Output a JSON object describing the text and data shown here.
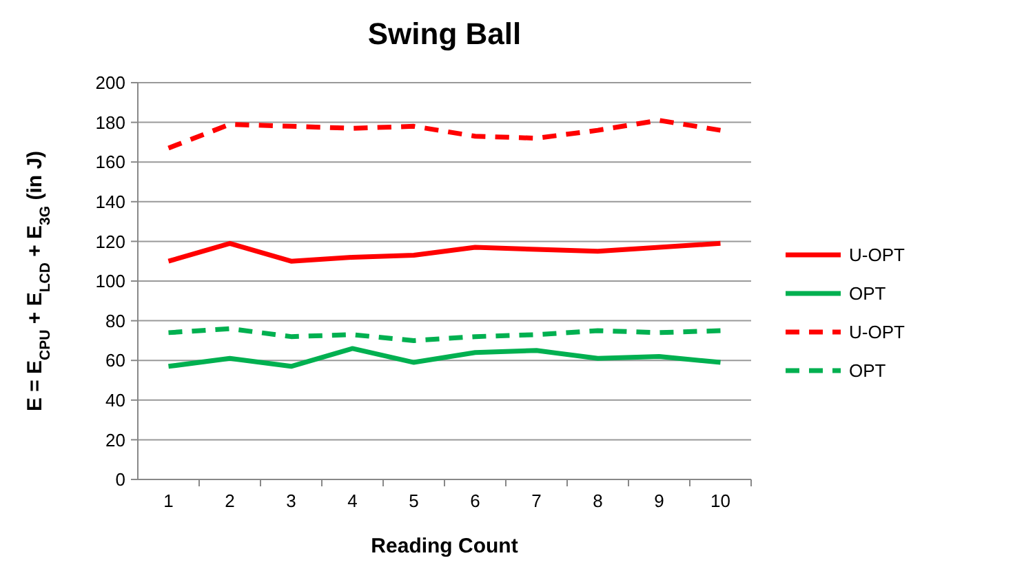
{
  "chart_data": {
    "type": "line",
    "title": "Swing Ball",
    "xlabel": "Reading Count",
    "ylabel": "E = E$_{CPU}$ + E$_{LCD}$ + E$_{3G}$ (in J)",
    "categories": [
      "1",
      "2",
      "3",
      "4",
      "5",
      "6",
      "7",
      "8",
      "9",
      "10"
    ],
    "ylim": [
      0,
      200
    ],
    "yticks": [
      0,
      20,
      40,
      60,
      80,
      100,
      120,
      140,
      160,
      180,
      200
    ],
    "grid": "y",
    "legend": "right",
    "series": [
      {
        "name": "U-OPT",
        "color": "#ff0000",
        "line_style": "solid",
        "values": [
          110,
          119,
          110,
          112,
          113,
          117,
          116,
          115,
          117,
          119
        ]
      },
      {
        "name": "OPT",
        "color": "#00b050",
        "line_style": "solid",
        "values": [
          57,
          61,
          57,
          66,
          59,
          64,
          65,
          61,
          62,
          59
        ]
      },
      {
        "name": "U-OPT",
        "color": "#ff0000",
        "line_style": "dashed",
        "values": [
          167,
          179,
          178,
          177,
          178,
          173,
          172,
          176,
          181,
          176
        ]
      },
      {
        "name": "OPT",
        "color": "#00b050",
        "line_style": "dashed",
        "values": [
          74,
          76,
          72,
          73,
          70,
          72,
          73,
          75,
          74,
          75
        ]
      }
    ]
  }
}
